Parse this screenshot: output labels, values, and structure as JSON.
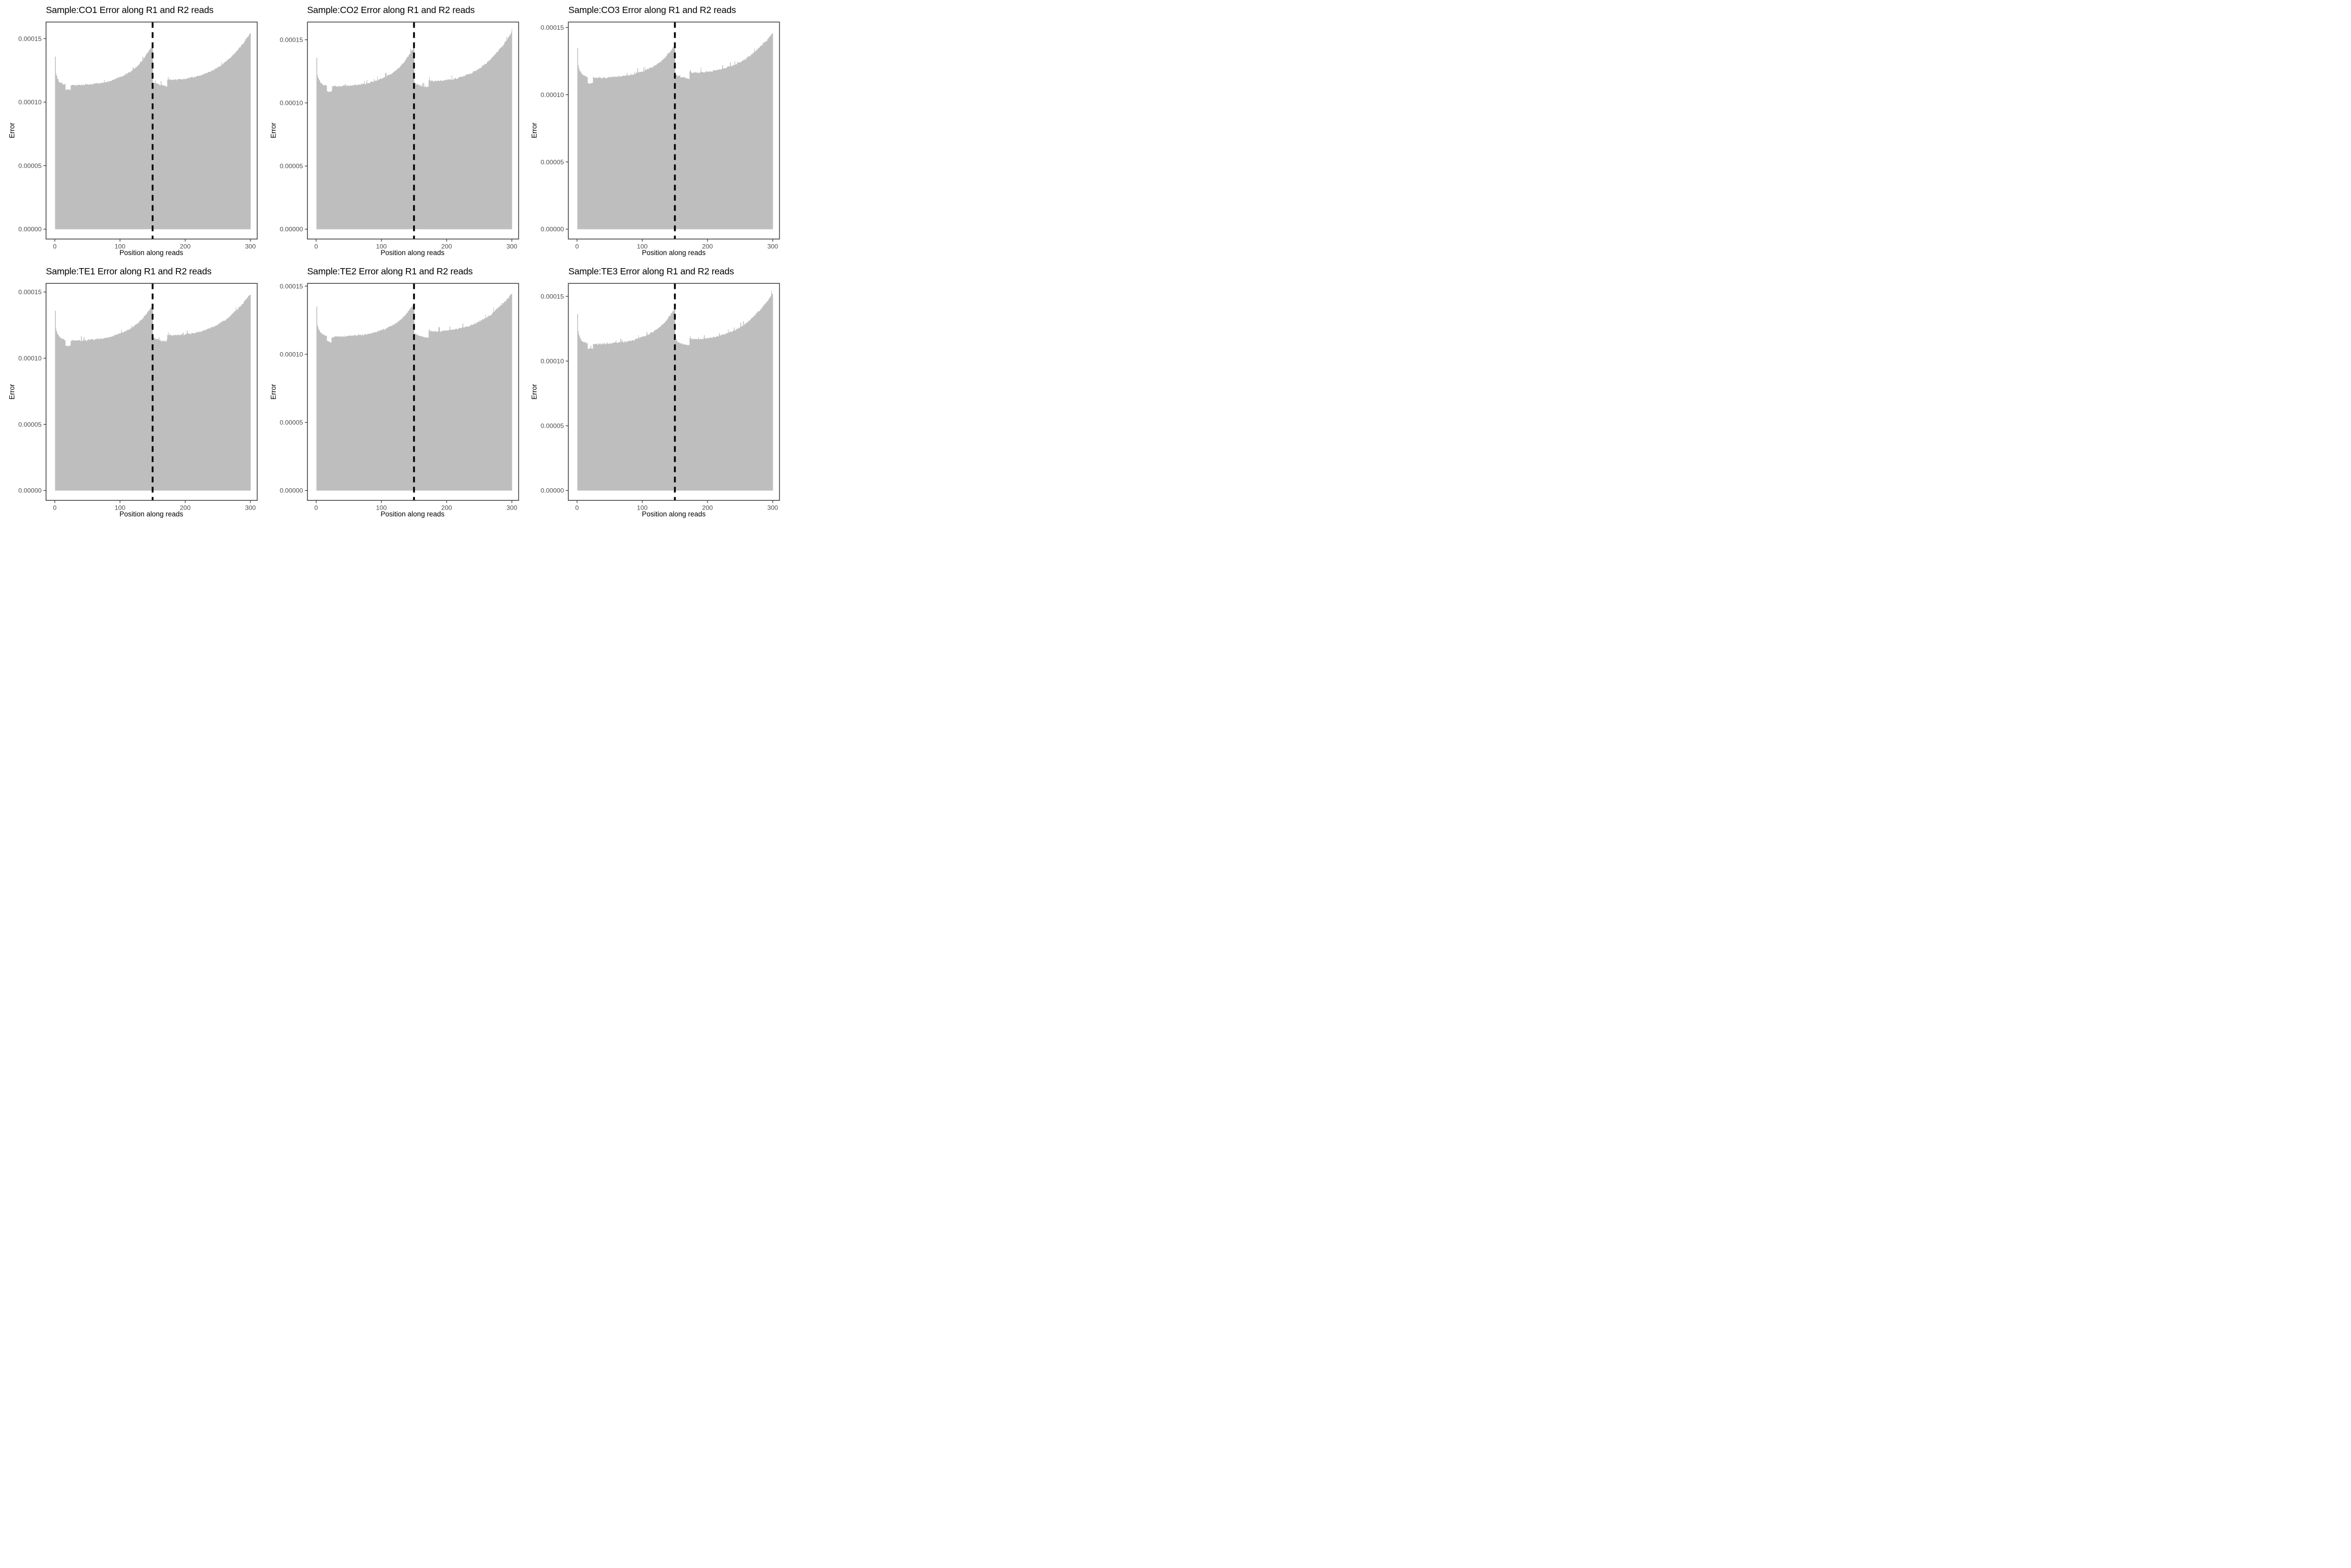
{
  "figure": {
    "background": "#FFFFFF",
    "rows": 2,
    "cols": 3
  },
  "styles": {
    "bar_fill": "#BEBEBE",
    "panel_border": "#3F3F3F",
    "tick_color": "#333333",
    "tick_label_color": "#4D4D4D",
    "title_color": "#000000",
    "axis_title_color": "#000000",
    "boundary_line_color": "#000000"
  },
  "axes": {
    "x_label": "Position along reads",
    "y_label": "Error",
    "x_ticks": [
      0,
      100,
      200,
      300
    ],
    "x_tick_labels": [
      "0",
      "100",
      "200",
      "300"
    ],
    "y_tick_values": [
      0,
      5e-05,
      0.0001,
      0.00015
    ],
    "y_tick_labels": [
      "0.00000",
      "0.00005",
      "0.00010",
      "0.00015"
    ]
  },
  "chart_data": [
    {
      "type": "bar",
      "sample": "CO1",
      "title": "Sample:CO1 Error along R1 and R2 reads",
      "xlabel": "Position along reads",
      "ylabel": "Error",
      "x_range": [
        1,
        300
      ],
      "boundary_x": 150,
      "y_max_display": 0.000163,
      "control_points": {
        "x": [
          1,
          2,
          3,
          4,
          6,
          8,
          10,
          13,
          16,
          17,
          20,
          24,
          25,
          28,
          32,
          36,
          40,
          45,
          50,
          55,
          60,
          65,
          70,
          75,
          80,
          85,
          90,
          95,
          100,
          105,
          110,
          115,
          120,
          125,
          130,
          135,
          140,
          143,
          146,
          148,
          150,
          151,
          153,
          156,
          160,
          164,
          168,
          171,
          172,
          173,
          174,
          175,
          180,
          185,
          190,
          195,
          200,
          205,
          210,
          215,
          220,
          225,
          230,
          235,
          240,
          245,
          250,
          255,
          260,
          265,
          270,
          275,
          280,
          285,
          290,
          294,
          297,
          300
        ],
        "y": [
          0.000136,
          0.0001225,
          0.0001205,
          0.000119,
          0.000117,
          0.0001158,
          0.000115,
          0.0001144,
          0.0001139,
          0.00011,
          0.0001098,
          0.00011,
          0.0001132,
          0.0001134,
          0.0001133,
          0.0001135,
          0.0001135,
          0.0001136,
          0.0001138,
          0.0001141,
          0.0001144,
          0.0001147,
          0.000115,
          0.0001154,
          0.0001159,
          0.0001166,
          0.0001175,
          0.0001186,
          0.0001197,
          0.0001208,
          0.0001221,
          0.0001237,
          0.0001255,
          0.0001276,
          0.0001302,
          0.0001332,
          0.000137,
          0.0001393,
          0.0001417,
          0.0001432,
          0.0001455,
          0.0001162,
          0.0001156,
          0.0001148,
          0.0001141,
          0.0001135,
          0.000113,
          0.0001126,
          0.0001125,
          0.0001183,
          0.00012,
          0.000118,
          0.0001177,
          0.0001177,
          0.0001179,
          0.0001181,
          0.0001184,
          0.0001188,
          0.0001193,
          0.0001199,
          0.0001206,
          0.0001214,
          0.0001223,
          0.0001233,
          0.0001245,
          0.0001258,
          0.0001273,
          0.000129,
          0.0001309,
          0.000133,
          0.0001354,
          0.000138,
          0.0001408,
          0.0001438,
          0.000147,
          0.00015,
          0.0001525,
          0.0001548
        ]
      }
    },
    {
      "type": "bar",
      "sample": "CO2",
      "title": "Sample:CO2 Error along R1 and R2 reads",
      "xlabel": "Position along reads",
      "ylabel": "Error",
      "x_range": [
        1,
        300
      ],
      "boundary_x": 150,
      "y_max_display": 0.000164,
      "control_points": {
        "x": [
          1,
          2,
          3,
          4,
          6,
          8,
          10,
          13,
          16,
          17,
          20,
          24,
          25,
          28,
          32,
          36,
          40,
          45,
          50,
          55,
          60,
          65,
          70,
          75,
          80,
          85,
          90,
          95,
          100,
          105,
          110,
          115,
          120,
          125,
          130,
          135,
          140,
          143,
          146,
          148,
          150,
          151,
          153,
          156,
          160,
          164,
          168,
          171,
          172,
          173,
          174,
          175,
          180,
          185,
          190,
          195,
          200,
          205,
          210,
          215,
          220,
          225,
          230,
          235,
          240,
          245,
          250,
          255,
          260,
          265,
          270,
          275,
          280,
          285,
          290,
          294,
          297,
          300
        ],
        "y": [
          0.0001359,
          0.0001222,
          0.0001202,
          0.0001188,
          0.0001168,
          0.0001156,
          0.0001148,
          0.0001142,
          0.0001137,
          0.000109,
          0.0001088,
          0.000109,
          0.000113,
          0.0001132,
          0.0001131,
          0.0001133,
          0.0001133,
          0.0001134,
          0.0001136,
          0.0001139,
          0.0001142,
          0.0001144,
          0.0001148,
          0.0001151,
          0.0001156,
          0.0001163,
          0.0001172,
          0.0001182,
          0.0001193,
          0.0001204,
          0.0001216,
          0.0001232,
          0.0001249,
          0.000127,
          0.0001295,
          0.0001324,
          0.0001361,
          0.0001383,
          0.0001406,
          0.0001421,
          0.0001443,
          0.0001158,
          0.0001152,
          0.0001145,
          0.0001138,
          0.0001132,
          0.0001127,
          0.0001123,
          0.0001122,
          0.000118,
          0.0001197,
          0.0001175,
          0.0001172,
          0.0001172,
          0.0001174,
          0.0001176,
          0.0001179,
          0.0001183,
          0.0001188,
          0.0001195,
          0.0001202,
          0.000121,
          0.000122,
          0.000123,
          0.0001243,
          0.0001257,
          0.0001272,
          0.000129,
          0.000131,
          0.0001332,
          0.0001357,
          0.0001389,
          0.0001416,
          0.0001447,
          0.000148,
          0.000151,
          0.0001536,
          0.000156
        ]
      }
    },
    {
      "type": "bar",
      "sample": "CO3",
      "title": "Sample:CO3 Error along R1 and R2 reads",
      "xlabel": "Position along reads",
      "ylabel": "Error",
      "x_range": [
        1,
        300
      ],
      "boundary_x": 150,
      "y_max_display": 0.000154,
      "control_points": {
        "x": [
          1,
          2,
          3,
          4,
          6,
          8,
          10,
          13,
          16,
          17,
          20,
          24,
          25,
          28,
          32,
          36,
          40,
          45,
          50,
          55,
          60,
          65,
          70,
          75,
          80,
          85,
          90,
          95,
          100,
          105,
          110,
          115,
          120,
          125,
          130,
          135,
          140,
          143,
          146,
          148,
          150,
          151,
          153,
          156,
          160,
          164,
          168,
          171,
          172,
          173,
          174,
          175,
          180,
          185,
          190,
          195,
          200,
          205,
          210,
          215,
          220,
          225,
          230,
          235,
          240,
          245,
          250,
          255,
          260,
          265,
          270,
          275,
          280,
          285,
          290,
          294,
          297,
          300
        ],
        "y": [
          0.0001347,
          0.0001215,
          0.0001196,
          0.0001182,
          0.0001164,
          0.0001152,
          0.0001145,
          0.0001138,
          0.0001133,
          0.0001086,
          0.0001084,
          0.0001086,
          0.0001125,
          0.0001126,
          0.0001126,
          0.0001127,
          0.0001127,
          0.0001128,
          0.000113,
          0.0001132,
          0.0001134,
          0.0001136,
          0.0001139,
          0.0001142,
          0.0001146,
          0.0001151,
          0.0001158,
          0.0001166,
          0.0001174,
          0.0001183,
          0.0001193,
          0.0001205,
          0.0001218,
          0.0001234,
          0.0001254,
          0.0001277,
          0.0001306,
          0.0001323,
          0.0001341,
          0.0001353,
          0.000137,
          0.000115,
          0.0001145,
          0.0001139,
          0.0001133,
          0.0001128,
          0.0001124,
          0.000112,
          0.0001118,
          0.0001172,
          0.0001188,
          0.0001168,
          0.0001165,
          0.0001165,
          0.0001167,
          0.0001169,
          0.0001171,
          0.0001174,
          0.0001178,
          0.0001183,
          0.0001189,
          0.0001195,
          0.0001202,
          0.000121,
          0.000122,
          0.000123,
          0.0001242,
          0.0001255,
          0.0001271,
          0.0001287,
          0.0001306,
          0.0001331,
          0.0001351,
          0.0001374,
          0.00014,
          0.0001422,
          0.0001442,
          0.000146
        ]
      }
    },
    {
      "type": "bar",
      "sample": "TE1",
      "title": "Sample:TE1 Error along R1 and R2 reads",
      "xlabel": "Position along reads",
      "ylabel": "Error",
      "x_range": [
        1,
        300
      ],
      "boundary_x": 150,
      "y_max_display": 0.0001565,
      "control_points": {
        "x": [
          1,
          2,
          3,
          4,
          6,
          8,
          10,
          13,
          16,
          17,
          20,
          24,
          25,
          28,
          32,
          36,
          40,
          45,
          50,
          55,
          60,
          65,
          70,
          75,
          80,
          85,
          90,
          95,
          100,
          105,
          110,
          115,
          120,
          125,
          130,
          135,
          140,
          143,
          146,
          148,
          150,
          151,
          153,
          156,
          160,
          164,
          168,
          171,
          172,
          173,
          174,
          175,
          180,
          185,
          190,
          195,
          200,
          205,
          210,
          215,
          220,
          225,
          230,
          235,
          240,
          245,
          250,
          255,
          260,
          265,
          270,
          275,
          280,
          285,
          290,
          294,
          297,
          300
        ],
        "y": [
          0.0001361,
          0.0001223,
          0.0001203,
          0.0001189,
          0.0001169,
          0.0001157,
          0.0001149,
          0.0001143,
          0.0001138,
          0.0001094,
          0.0001092,
          0.0001094,
          0.0001132,
          0.0001134,
          0.0001133,
          0.0001134,
          0.0001134,
          0.0001135,
          0.0001137,
          0.000114,
          0.0001142,
          0.0001145,
          0.0001147,
          0.0001151,
          0.0001155,
          0.0001161,
          0.0001168,
          0.0001178,
          0.0001187,
          0.0001196,
          0.0001207,
          0.0001221,
          0.0001236,
          0.0001254,
          0.0001276,
          0.0001301,
          0.0001333,
          0.0001353,
          0.0001373,
          0.0001386,
          0.0001405,
          0.0001158,
          0.0001152,
          0.0001146,
          0.0001139,
          0.0001133,
          0.0001128,
          0.0001124,
          0.0001122,
          0.0001181,
          0.0001198,
          0.0001176,
          0.0001174,
          0.0001174,
          0.0001175,
          0.0001177,
          0.0001179,
          0.0001183,
          0.0001187,
          0.0001192,
          0.0001198,
          0.0001205,
          0.0001212,
          0.0001221,
          0.0001231,
          0.0001242,
          0.0001255,
          0.0001269,
          0.0001285,
          0.0001303,
          0.0001323,
          0.0001349,
          0.000137,
          0.0001396,
          0.0001423,
          0.0001447,
          0.0001468,
          0.0001487
        ]
      }
    },
    {
      "type": "bar",
      "sample": "TE2",
      "title": "Sample:TE2 Error along R1 and R2 reads",
      "xlabel": "Position along reads",
      "ylabel": "Error",
      "x_range": [
        1,
        300
      ],
      "boundary_x": 150,
      "y_max_display": 0.000152,
      "control_points": {
        "x": [
          1,
          2,
          3,
          4,
          6,
          8,
          10,
          13,
          16,
          17,
          20,
          24,
          25,
          28,
          32,
          36,
          40,
          45,
          50,
          55,
          60,
          65,
          70,
          75,
          80,
          85,
          90,
          95,
          100,
          105,
          110,
          115,
          120,
          125,
          130,
          135,
          140,
          143,
          146,
          148,
          150,
          151,
          153,
          156,
          160,
          164,
          168,
          171,
          172,
          173,
          174,
          175,
          180,
          185,
          190,
          195,
          200,
          205,
          210,
          215,
          220,
          225,
          230,
          235,
          240,
          245,
          250,
          255,
          260,
          265,
          270,
          275,
          280,
          285,
          290,
          294,
          297,
          300
        ],
        "y": [
          0.0001349,
          0.0001218,
          0.0001199,
          0.0001185,
          0.0001166,
          0.0001154,
          0.0001147,
          0.0001141,
          0.0001135,
          0.0001093,
          0.0001091,
          0.0001093,
          0.0001128,
          0.0001129,
          0.0001129,
          0.000113,
          0.000113,
          0.0001131,
          0.0001133,
          0.0001135,
          0.0001137,
          0.0001139,
          0.0001142,
          0.0001145,
          0.0001148,
          0.0001154,
          0.000116,
          0.0001169,
          0.0001177,
          0.0001185,
          0.0001195,
          0.0001207,
          0.0001221,
          0.0001237,
          0.0001256,
          0.0001279,
          0.0001308,
          0.0001325,
          0.0001343,
          0.0001355,
          0.0001372,
          0.0001152,
          0.0001147,
          0.0001141,
          0.0001135,
          0.0001129,
          0.0001125,
          0.0001121,
          0.000112,
          0.0001174,
          0.000119,
          0.000117,
          0.0001168,
          0.0001168,
          0.0001169,
          0.0001171,
          0.0001173,
          0.0001176,
          0.000118,
          0.0001184,
          0.000119,
          0.0001195,
          0.0001202,
          0.000121,
          0.0001219,
          0.0001228,
          0.000124,
          0.0001253,
          0.0001267,
          0.0001282,
          0.00013,
          0.0001324,
          0.0001343,
          0.0001365,
          0.0001389,
          0.000141,
          0.0001429,
          0.0001446
        ]
      }
    },
    {
      "type": "bar",
      "sample": "TE3",
      "title": "Sample:TE3 Error along R1 and R2 reads",
      "xlabel": "Position along reads",
      "ylabel": "Error",
      "x_range": [
        1,
        300
      ],
      "boundary_x": 150,
      "y_max_display": 0.00016,
      "control_points": {
        "x": [
          1,
          2,
          3,
          4,
          6,
          8,
          10,
          13,
          16,
          17,
          20,
          24,
          25,
          28,
          32,
          36,
          40,
          45,
          50,
          55,
          60,
          65,
          70,
          75,
          80,
          85,
          90,
          95,
          100,
          105,
          110,
          115,
          120,
          125,
          130,
          135,
          140,
          143,
          146,
          148,
          150,
          151,
          153,
          156,
          160,
          164,
          168,
          171,
          172,
          173,
          174,
          175,
          180,
          185,
          190,
          195,
          200,
          205,
          210,
          215,
          220,
          225,
          230,
          235,
          240,
          245,
          250,
          255,
          260,
          265,
          270,
          275,
          280,
          285,
          290,
          294,
          297,
          300
        ],
        "y": [
          0.0001362,
          0.0001224,
          0.0001204,
          0.000119,
          0.000117,
          0.0001157,
          0.000115,
          0.0001143,
          0.0001138,
          0.0001098,
          0.0001096,
          0.0001098,
          0.0001131,
          0.0001133,
          0.0001132,
          0.0001134,
          0.0001134,
          0.0001134,
          0.0001136,
          0.0001139,
          0.0001141,
          0.0001144,
          0.0001147,
          0.000115,
          0.0001154,
          0.000116,
          0.0001168,
          0.0001178,
          0.0001187,
          0.0001197,
          0.0001208,
          0.0001222,
          0.0001237,
          0.0001255,
          0.0001278,
          0.0001304,
          0.0001337,
          0.0001356,
          0.0001377,
          0.000139,
          0.000141,
          0.0001156,
          0.0001151,
          0.0001144,
          0.0001138,
          0.0001132,
          0.0001127,
          0.0001123,
          0.0001122,
          0.0001178,
          0.0001195,
          0.0001173,
          0.000117,
          0.000117,
          0.0001172,
          0.0001174,
          0.0001177,
          0.0001181,
          0.0001185,
          0.0001191,
          0.0001198,
          0.0001205,
          0.0001214,
          0.0001224,
          0.0001235,
          0.0001247,
          0.0001262,
          0.0001278,
          0.0001296,
          0.0001316,
          0.0001339,
          0.0001369,
          0.0001392,
          0.0001421,
          0.0001451,
          0.0001478,
          0.0001502,
          0.0001524
        ]
      }
    }
  ]
}
